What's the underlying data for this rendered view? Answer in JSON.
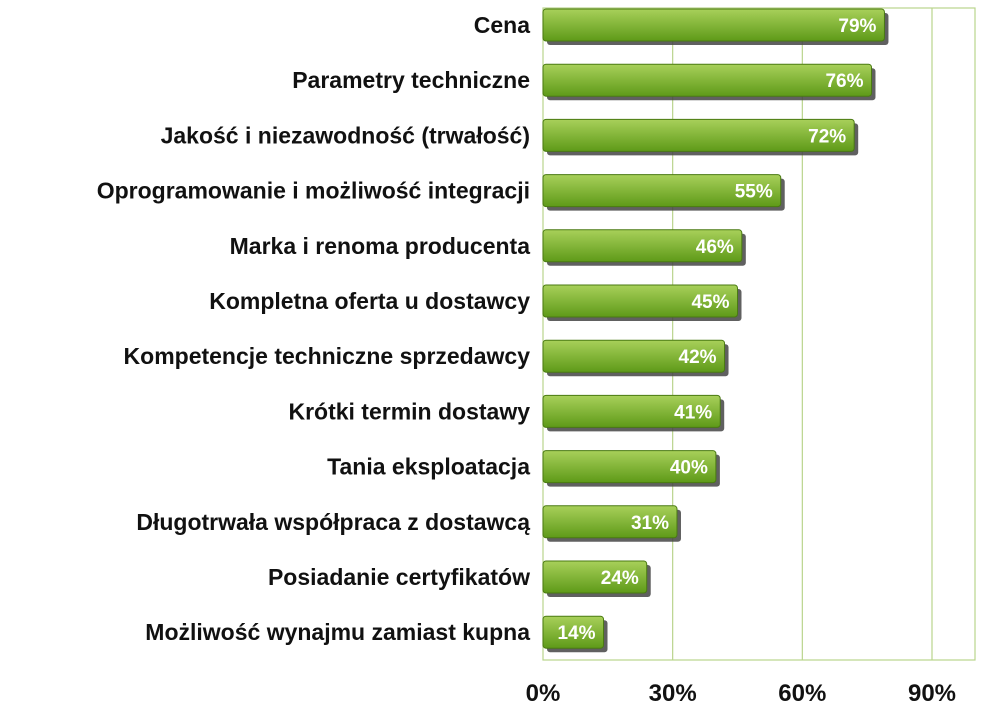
{
  "chart_data": {
    "type": "bar",
    "orientation": "horizontal",
    "title": "",
    "xlabel": "",
    "ylabel": "",
    "categories": [
      "Cena",
      "Parametry techniczne",
      "Jakość i niezawodność (trwałość)",
      "Oprogramowanie i możliwość integracji",
      "Marka i renoma producenta",
      "Kompletna oferta u dostawcy",
      "Kompetencje techniczne sprzedawcy",
      "Krótki termin dostawy",
      "Tania eksploatacja",
      "Długotrwała współpraca z dostawcą",
      "Posiadanie certyfikatów",
      "Możliwość wynajmu zamiast kupna"
    ],
    "values": [
      79,
      76,
      72,
      55,
      46,
      45,
      42,
      41,
      40,
      31,
      24,
      14
    ],
    "data_labels": [
      "79%",
      "76%",
      "72%",
      "55%",
      "46%",
      "45%",
      "42%",
      "41%",
      "40%",
      "31%",
      "24%",
      "14%"
    ],
    "xlim": [
      0,
      100
    ],
    "xticks": [
      0,
      30,
      60,
      90
    ],
    "xtick_labels": [
      "0%",
      "30%",
      "60%",
      "90%"
    ],
    "grid": "vertical",
    "legend": "none",
    "colors": {
      "bar_top": "#a8d05a",
      "bar_bottom": "#5e9a18",
      "bar_edge": "#4a7a12",
      "shadow": "#444444",
      "grid": "#b9d48c",
      "plot_border": "#b9d48c",
      "label_text": "#111111",
      "value_text": "#ffffff"
    }
  }
}
